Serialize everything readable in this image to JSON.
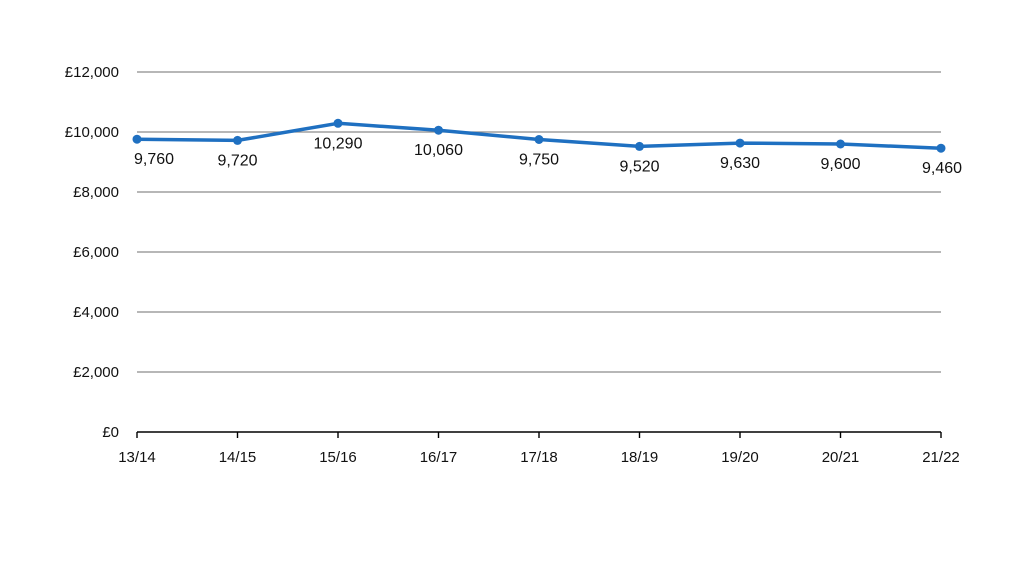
{
  "chart_data": {
    "type": "line",
    "categories": [
      "13/14",
      "14/15",
      "15/16",
      "16/17",
      "17/18",
      "18/19",
      "19/20",
      "20/21",
      "21/22"
    ],
    "series": [
      {
        "values": [
          9760,
          9720,
          10290,
          10060,
          9750,
          9520,
          9630,
          9600,
          9460
        ],
        "labels": [
          "9,760",
          "9,720",
          "10,290",
          "10,060",
          "9,750",
          "9,520",
          "9,630",
          "9,600",
          "9,460"
        ],
        "color": "#1F70C1"
      }
    ],
    "y_ticks": [
      0,
      2000,
      4000,
      6000,
      8000,
      10000,
      12000
    ],
    "y_tick_labels": [
      "£0",
      "£2,000",
      "£4,000",
      "£6,000",
      "£8,000",
      "£10,000",
      "£12,000"
    ],
    "ylim": [
      0,
      12000
    ],
    "grid": true,
    "grid_color": "#8C8C8C",
    "axis_color": "#000000",
    "title": "",
    "xlabel": "",
    "ylabel": "",
    "legend": "none"
  }
}
